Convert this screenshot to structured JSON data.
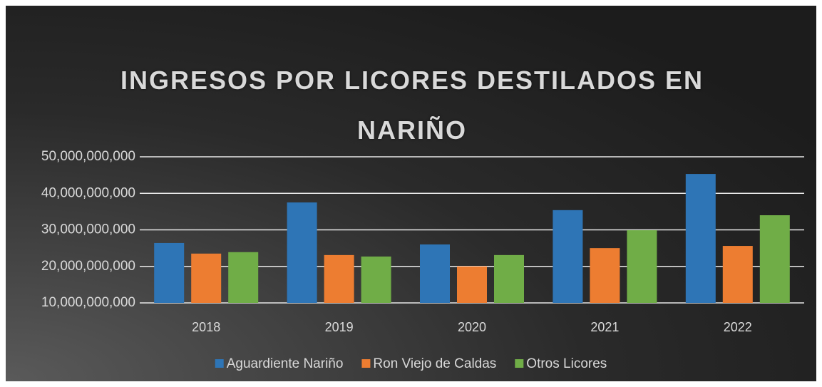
{
  "chart_data": {
    "type": "bar",
    "title": "INGRESOS POR LICORES DESTILADOS EN NARIÑO",
    "categories": [
      "2018",
      "2019",
      "2020",
      "2021",
      "2022"
    ],
    "series": [
      {
        "name": "Aguardiente Nariño",
        "color": "#2e75b6",
        "values": [
          26400000000,
          37500000000,
          26000000000,
          35400000000,
          45300000000
        ]
      },
      {
        "name": "Ron Viejo de Caldas",
        "color": "#ed7d31",
        "values": [
          23500000000,
          23100000000,
          20000000000,
          25000000000,
          25600000000
        ]
      },
      {
        "name": "Otros Licores",
        "color": "#70ad47",
        "values": [
          23900000000,
          22700000000,
          23100000000,
          29900000000,
          34000000000
        ]
      }
    ],
    "ylim": [
      10000000000,
      50000000000
    ],
    "yticks": [
      {
        "value": 10000000000,
        "label": "10,000,000,000"
      },
      {
        "value": 20000000000,
        "label": "20,000,000,000"
      },
      {
        "value": 30000000000,
        "label": "30,000,000,000"
      },
      {
        "value": 40000000000,
        "label": "40,000,000,000"
      },
      {
        "value": 50000000000,
        "label": "50,000,000,000"
      }
    ],
    "grid": true,
    "legend": "bottom"
  }
}
